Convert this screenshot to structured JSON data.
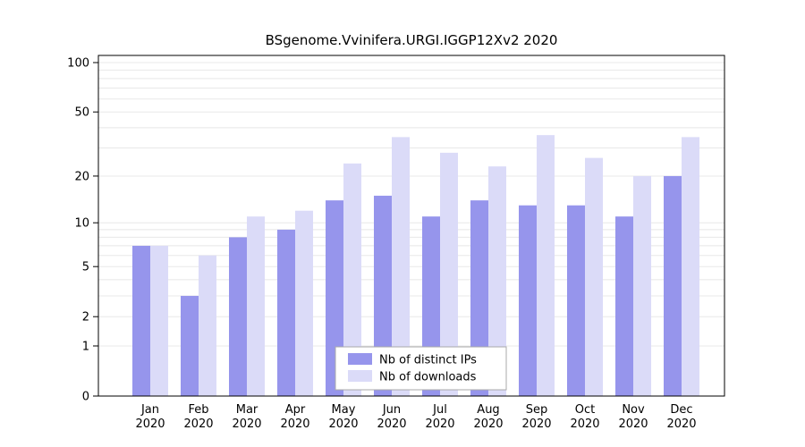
{
  "chart_data": {
    "type": "bar",
    "title": "BSgenome.Vvinifera.URGI.IGGP12Xv2 2020",
    "categories": [
      {
        "month": "Jan",
        "year": "2020"
      },
      {
        "month": "Feb",
        "year": "2020"
      },
      {
        "month": "Mar",
        "year": "2020"
      },
      {
        "month": "Apr",
        "year": "2020"
      },
      {
        "month": "May",
        "year": "2020"
      },
      {
        "month": "Jun",
        "year": "2020"
      },
      {
        "month": "Jul",
        "year": "2020"
      },
      {
        "month": "Aug",
        "year": "2020"
      },
      {
        "month": "Sep",
        "year": "2020"
      },
      {
        "month": "Oct",
        "year": "2020"
      },
      {
        "month": "Nov",
        "year": "2020"
      },
      {
        "month": "Dec",
        "year": "2020"
      }
    ],
    "series": [
      {
        "name": "Nb of distinct IPs",
        "color": "#9695ec",
        "values": [
          7,
          3,
          8,
          9,
          14,
          15,
          11,
          14,
          13,
          13,
          11,
          20
        ]
      },
      {
        "name": "Nb of downloads",
        "color": "#dbdbf8",
        "values": [
          7,
          6,
          11,
          12,
          24,
          35,
          28,
          23,
          36,
          26,
          20,
          35
        ]
      }
    ],
    "y_axis": {
      "scale": "log10(value+1)",
      "ticks": [
        0,
        1,
        2,
        5,
        10,
        20,
        50,
        100
      ],
      "grid_values": [
        1,
        2,
        3,
        4,
        5,
        6,
        7,
        8,
        9,
        10,
        20,
        30,
        40,
        50,
        60,
        70,
        80,
        90,
        100
      ],
      "max": 100
    },
    "legend": {
      "position": "inside-bottom-center"
    },
    "colors": {
      "grid": "#e8e8e8",
      "axis": "#000000",
      "legend_border": "#aaaaaa",
      "plot_background": "#ffffff"
    }
  }
}
